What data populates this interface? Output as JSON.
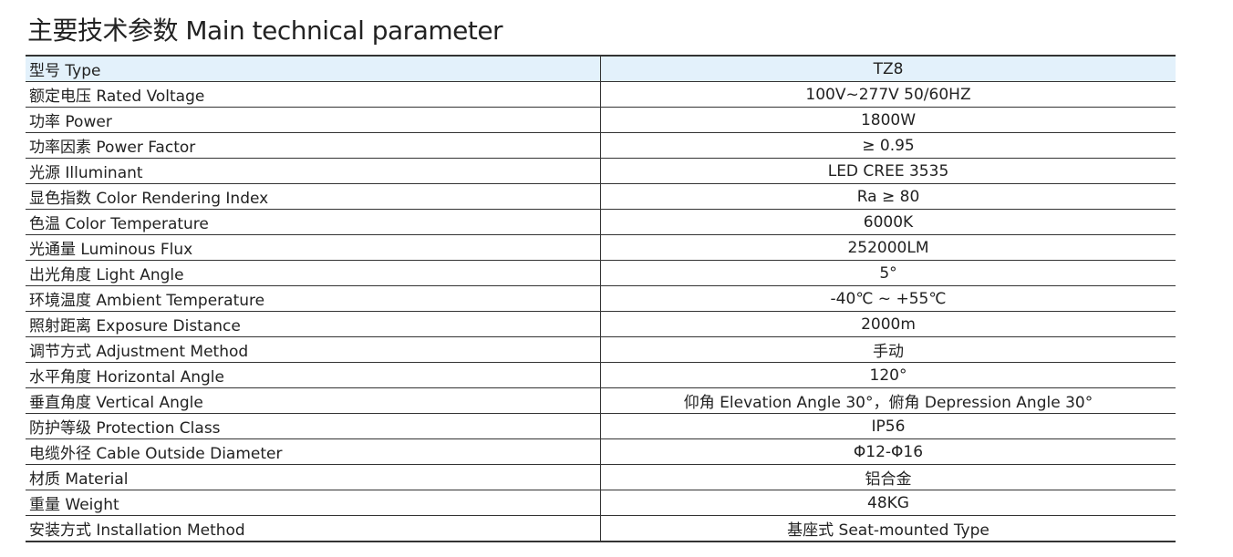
{
  "header": {
    "title": "主要技术参数 Main technical parameter"
  },
  "table": {
    "rows": [
      [
        "型号 Type",
        "TZ8"
      ],
      [
        "额定电压 Rated Voltage",
        "100V~277V  50/60HZ"
      ],
      [
        "功率 Power",
        "1800W"
      ],
      [
        "功率因素 Power Factor",
        "≥ 0.95"
      ],
      [
        "光源 Illuminant",
        "LED CREE 3535"
      ],
      [
        "显色指数 Color Rendering Index",
        "Ra ≥ 80"
      ],
      [
        "色温 Color Temperature",
        "6000K"
      ],
      [
        "光通量 Luminous Flux",
        "252000LM"
      ],
      [
        "出光角度 Light Angle",
        "5°"
      ],
      [
        "环境温度 Ambient Temperature",
        "-40℃ ~ +55℃"
      ],
      [
        "照射距离 Exposure Distance",
        "2000m"
      ],
      [
        "调节方式 Adjustment Method",
        "手动"
      ],
      [
        "水平角度 Horizontal Angle",
        "120°"
      ],
      [
        "垂直角度 Vertical Angle",
        "仰角 Elevation Angle 30°，俯角 Depression Angle 30°"
      ],
      [
        "防护等级 Protection Class",
        "IP56"
      ],
      [
        "电缆外径 Cable Outside Diameter",
        "Φ12-Φ16"
      ],
      [
        "材质 Material",
        "铝合金"
      ],
      [
        "重量 Weight",
        "48KG"
      ],
      [
        "安装方式 Installation Method",
        "基座式 Seat-mounted Type"
      ]
    ]
  }
}
